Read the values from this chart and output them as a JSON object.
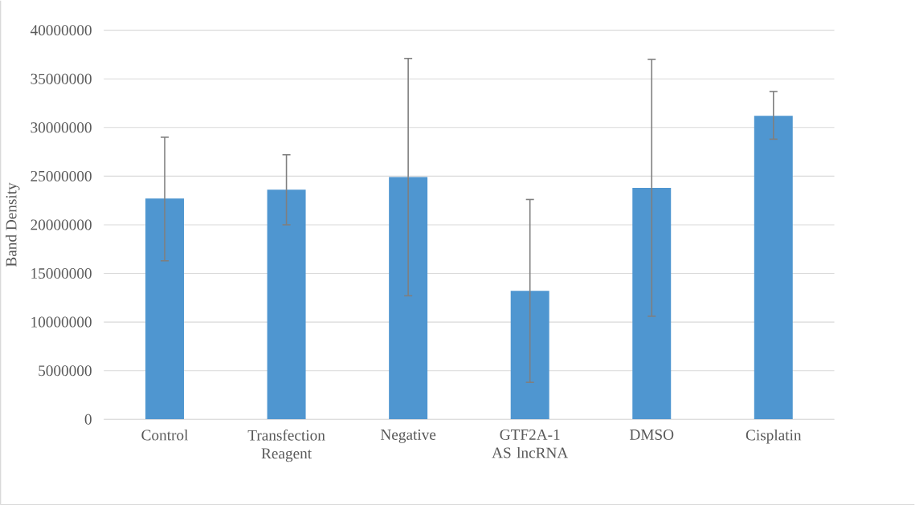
{
  "chart_data": {
    "type": "bar",
    "ylabel": "Band Density",
    "categories": [
      "Control",
      "Transfection Reagent",
      "Negative",
      "GTF2A-1 AS lncRNA",
      "DMSO",
      "Cisplatin"
    ],
    "values": [
      22700000,
      23600000,
      24900000,
      13200000,
      23800000,
      31200000
    ],
    "errors": [
      [
        16300000,
        29000000
      ],
      [
        20000000,
        27200000
      ],
      [
        12700000,
        37100000
      ],
      [
        3800000,
        22600000
      ],
      [
        10600000,
        37000000
      ],
      [
        28800000,
        33700000
      ]
    ],
    "color": "#4f96d0",
    "ylim": [
      0,
      40000000
    ],
    "yticks": [
      0,
      5000000,
      10000000,
      15000000,
      20000000,
      25000000,
      30000000,
      35000000,
      40000000
    ],
    "grid": "y"
  }
}
